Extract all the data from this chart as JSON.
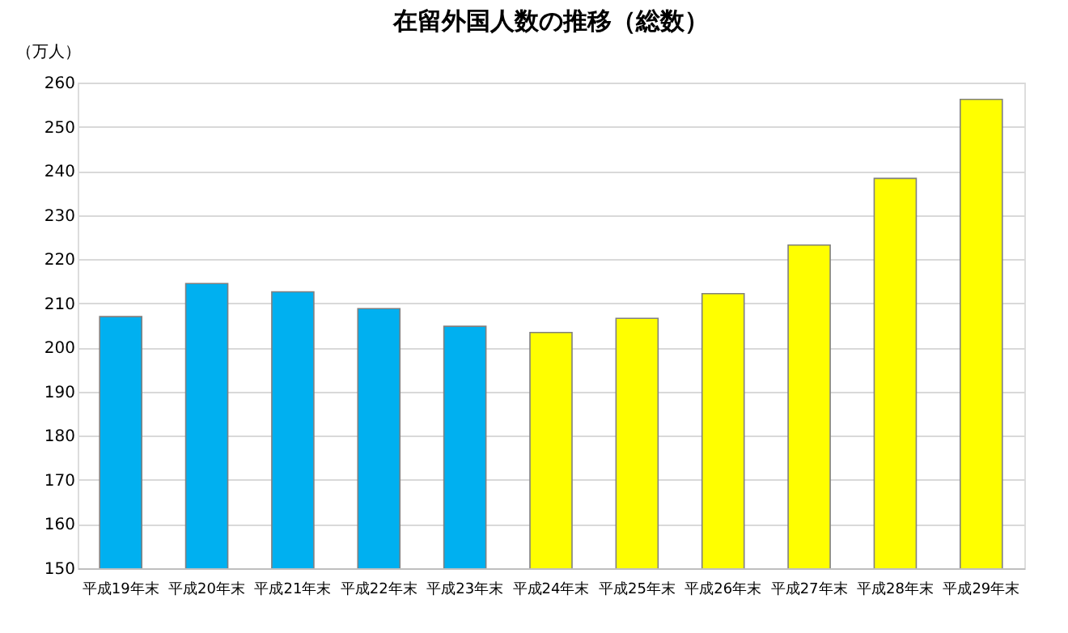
{
  "chart_data": {
    "type": "bar",
    "title": "在留外国人数の推移（総数）",
    "ylabel": "（万人）",
    "categories": [
      "平成19年末",
      "平成20年末",
      "平成21年末",
      "平成22年末",
      "平成23年末",
      "平成24年末",
      "平成25年末",
      "平成26年末",
      "平成27年末",
      "平成28年末",
      "平成29年末"
    ],
    "values": [
      207.0,
      214.5,
      212.6,
      208.8,
      204.8,
      203.4,
      206.6,
      212.2,
      223.2,
      238.3,
      256.2
    ],
    "colors": [
      "#00b0f0",
      "#00b0f0",
      "#00b0f0",
      "#00b0f0",
      "#00b0f0",
      "#ffff00",
      "#ffff00",
      "#ffff00",
      "#ffff00",
      "#ffff00",
      "#ffff00"
    ],
    "ylim": [
      150,
      260
    ],
    "yticks": [
      150,
      160,
      170,
      180,
      190,
      200,
      210,
      220,
      230,
      240,
      250,
      260
    ],
    "grid": "y"
  }
}
